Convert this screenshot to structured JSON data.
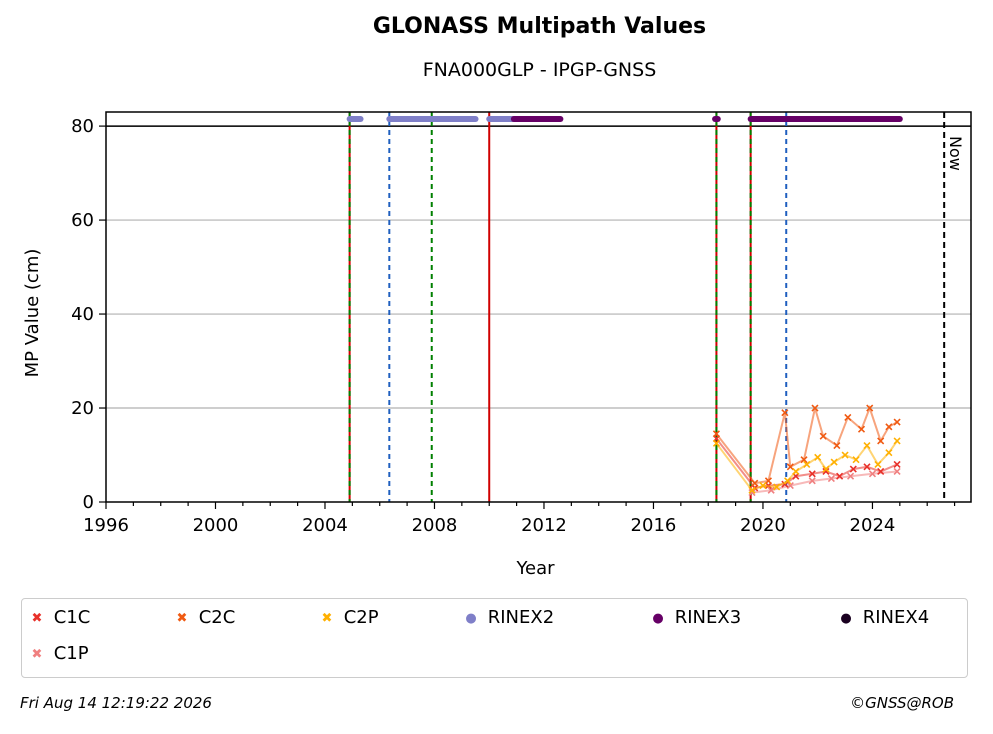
{
  "header": {
    "title": "GLONASS Multipath Values",
    "subtitle": "FNA000GLP - IPGP-GNSS"
  },
  "chart_data": {
    "type": "scatter",
    "xlabel": "Year",
    "ylabel": "MP Value (cm)",
    "xlim": [
      1996,
      2027.6
    ],
    "ylim": [
      0,
      83
    ],
    "x_ticks": [
      "1996",
      "2000",
      "2004",
      "2008",
      "2012",
      "2016",
      "2020",
      "2024"
    ],
    "y_ticks": [
      "0",
      "20",
      "40",
      "60",
      "80"
    ],
    "grid": "horizontal",
    "legend_placement": "below",
    "reference_line": {
      "y": 80
    },
    "now_line": {
      "x": 2026.62,
      "label": "Now"
    },
    "event_lines": [
      {
        "x": 2004.9,
        "color": "#d00000",
        "style": "solid"
      },
      {
        "x": 2004.9,
        "color": "#008000",
        "style": "dashed"
      },
      {
        "x": 2006.35,
        "color": "#1f5fbf",
        "style": "dashed"
      },
      {
        "x": 2007.9,
        "color": "#008000",
        "style": "dashed"
      },
      {
        "x": 2010.0,
        "color": "#d00000",
        "style": "solid"
      },
      {
        "x": 2018.3,
        "color": "#d00000",
        "style": "solid"
      },
      {
        "x": 2018.3,
        "color": "#008000",
        "style": "dashed"
      },
      {
        "x": 2019.55,
        "color": "#d00000",
        "style": "solid"
      },
      {
        "x": 2019.55,
        "color": "#008000",
        "style": "dashed"
      },
      {
        "x": 2020.85,
        "color": "#1f5fbf",
        "style": "dashed"
      }
    ],
    "data_availability": [
      {
        "series": "RINEX2",
        "y": 81.5,
        "ranges": [
          [
            2004.9,
            2005.3
          ],
          [
            2006.35,
            2009.5
          ],
          [
            2010.0,
            2011.0
          ]
        ]
      },
      {
        "series": "RINEX3",
        "y": 81.5,
        "ranges": [
          [
            2010.9,
            2012.6
          ],
          [
            2018.25,
            2018.35
          ],
          [
            2019.55,
            2025.0
          ]
        ]
      }
    ],
    "series": [
      {
        "name": "C1C",
        "color": "#e8312a",
        "points": [
          [
            2018.3,
            13.5
          ],
          [
            2019.7,
            3.0
          ],
          [
            2020.2,
            3.5
          ],
          [
            2020.8,
            3.8
          ],
          [
            2021.2,
            5.5
          ],
          [
            2021.8,
            6.0
          ],
          [
            2022.3,
            6.5
          ],
          [
            2022.8,
            5.5
          ],
          [
            2023.3,
            7.0
          ],
          [
            2023.8,
            7.5
          ],
          [
            2024.3,
            6.5
          ],
          [
            2024.9,
            8.0
          ]
        ]
      },
      {
        "name": "C2C",
        "color": "#f05a12",
        "points": [
          [
            2018.3,
            14.5
          ],
          [
            2019.7,
            4.0
          ],
          [
            2020.2,
            4.5
          ],
          [
            2020.8,
            19.0
          ],
          [
            2021.0,
            7.5
          ],
          [
            2021.5,
            9.0
          ],
          [
            2021.9,
            20.0
          ],
          [
            2022.2,
            14.0
          ],
          [
            2022.7,
            12.0
          ],
          [
            2023.1,
            18.0
          ],
          [
            2023.6,
            15.5
          ],
          [
            2023.9,
            20.0
          ],
          [
            2024.3,
            13.0
          ],
          [
            2024.6,
            16.0
          ],
          [
            2024.9,
            17.0
          ]
        ]
      },
      {
        "name": "C2P",
        "color": "#ffb000",
        "points": [
          [
            2018.3,
            12.5
          ],
          [
            2019.6,
            2.5
          ],
          [
            2020.0,
            3.5
          ],
          [
            2020.5,
            3.2
          ],
          [
            2020.9,
            4.5
          ],
          [
            2021.2,
            6.5
          ],
          [
            2021.6,
            8.0
          ],
          [
            2022.0,
            9.5
          ],
          [
            2022.3,
            7.0
          ],
          [
            2022.6,
            8.5
          ],
          [
            2023.0,
            10.0
          ],
          [
            2023.4,
            9.0
          ],
          [
            2023.8,
            12.0
          ],
          [
            2024.2,
            8.0
          ],
          [
            2024.6,
            10.5
          ],
          [
            2024.9,
            13.0
          ]
        ]
      },
      {
        "name": "C1P",
        "color": "#f08080",
        "points": [
          [
            2019.6,
            2.0
          ],
          [
            2020.3,
            2.5
          ],
          [
            2021.0,
            3.5
          ],
          [
            2021.8,
            4.5
          ],
          [
            2022.5,
            5.0
          ],
          [
            2023.2,
            5.5
          ],
          [
            2024.0,
            6.0
          ],
          [
            2024.9,
            6.5
          ]
        ]
      }
    ],
    "legend": [
      {
        "label": "C1C",
        "marker": "x",
        "color": "#e8312a"
      },
      {
        "label": "C2C",
        "marker": "x",
        "color": "#f05a12"
      },
      {
        "label": "C2P",
        "marker": "x",
        "color": "#ffb000"
      },
      {
        "label": "RINEX2",
        "marker": "dot",
        "color": "#7f7fc8"
      },
      {
        "label": "RINEX3",
        "marker": "dot",
        "color": "#660066"
      },
      {
        "label": "RINEX4",
        "marker": "dot",
        "color": "#1a0020"
      },
      {
        "label": "C1P",
        "marker": "x",
        "color": "#f08080"
      }
    ]
  },
  "footer": {
    "timestamp": "Fri Aug 14 12:19:22 2026",
    "copyright": "©GNSS@ROB"
  }
}
